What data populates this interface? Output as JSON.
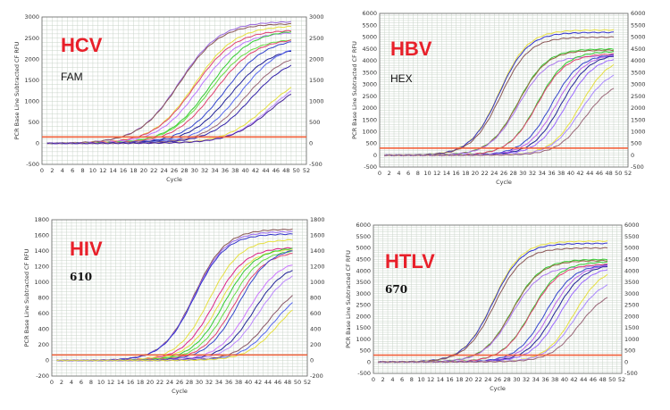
{
  "chart_data": [
    {
      "type": "line",
      "title": "HCV",
      "channel": "FAM",
      "xlabel": "Cycle",
      "ylabel": "PCR Base Line Subtracted CF RFU",
      "xlim": [
        0,
        52
      ],
      "ylim": [
        -500,
        3000
      ],
      "ytick_step": 500,
      "xtick_step": 2,
      "grid": true,
      "threshold": 150,
      "threshold_color": "#f0603a",
      "curves": [
        {
          "color": "#9966dd",
          "mid": 27,
          "plateau": 2900,
          "slope": 4
        },
        {
          "color": "#885555",
          "mid": 27,
          "plateau": 2850,
          "slope": 4
        },
        {
          "color": "#e6e040",
          "mid": 30,
          "plateau": 2800,
          "slope": 4
        },
        {
          "color": "#e04070",
          "mid": 30,
          "plateau": 2700,
          "slope": 4
        },
        {
          "color": "#bb77ff",
          "mid": 31,
          "plateau": 2650,
          "slope": 4
        },
        {
          "color": "#33cc33",
          "mid": 33,
          "plateau": 2700,
          "slope": 4
        },
        {
          "color": "#66dd44",
          "mid": 33,
          "plateau": 2500,
          "slope": 4
        },
        {
          "color": "#e04070",
          "mid": 34,
          "plateau": 2500,
          "slope": 4
        },
        {
          "color": "#3344cc",
          "mid": 36,
          "plateau": 2500,
          "slope": 4
        },
        {
          "color": "#222299",
          "mid": 37,
          "plateau": 2300,
          "slope": 4
        },
        {
          "color": "#5566ee",
          "mid": 39,
          "plateau": 2400,
          "slope": 4
        },
        {
          "color": "#996677",
          "mid": 40,
          "plateau": 2200,
          "slope": 4
        },
        {
          "color": "#3322aa",
          "mid": 41,
          "plateau": 2100,
          "slope": 4
        },
        {
          "color": "#e6e040",
          "mid": 44,
          "plateau": 1700,
          "slope": 4
        },
        {
          "color": "#bb88ff",
          "mid": 45,
          "plateau": 1700,
          "slope": 4
        },
        {
          "color": "#442299",
          "mid": 45,
          "plateau": 1600,
          "slope": 4
        }
      ]
    },
    {
      "type": "line",
      "title": "HBV",
      "channel": "HEX",
      "xlabel": "Cycle",
      "ylabel": "PCR Base Line Subtracted CF RFU",
      "xlim": [
        0,
        52
      ],
      "ylim": [
        -500,
        6000
      ],
      "ytick_step": 500,
      "xtick_step": 2,
      "grid": true,
      "threshold": 300,
      "threshold_color": "#f0603a",
      "curves": [
        {
          "color": "#e6e040",
          "mid": 25,
          "plateau": 5300,
          "slope": 3
        },
        {
          "color": "#3333cc",
          "mid": 25,
          "plateau": 5200,
          "slope": 3
        },
        {
          "color": "#885555",
          "mid": 25.3,
          "plateau": 5000,
          "slope": 3
        },
        {
          "color": "#33cc33",
          "mid": 29,
          "plateau": 4500,
          "slope": 3
        },
        {
          "color": "#996644",
          "mid": 29,
          "plateau": 4450,
          "slope": 3
        },
        {
          "color": "#aa77ee",
          "mid": 29,
          "plateau": 4200,
          "slope": 3
        },
        {
          "color": "#33cc33",
          "mid": 33,
          "plateau": 4400,
          "slope": 3
        },
        {
          "color": "#e04070",
          "mid": 33,
          "plateau": 4300,
          "slope": 3
        },
        {
          "color": "#3344cc",
          "mid": 36,
          "plateau": 4300,
          "slope": 3
        },
        {
          "color": "#bb66ee",
          "mid": 37,
          "plateau": 4300,
          "slope": 3
        },
        {
          "color": "#222299",
          "mid": 38,
          "plateau": 4300,
          "slope": 3
        },
        {
          "color": "#9966ff",
          "mid": 39,
          "plateau": 4200,
          "slope": 3
        },
        {
          "color": "#e6e040",
          "mid": 42,
          "plateau": 4200,
          "slope": 3
        },
        {
          "color": "#aa88ff",
          "mid": 42,
          "plateau": 3700,
          "slope": 3
        },
        {
          "color": "#996677",
          "mid": 43,
          "plateau": 3200,
          "slope": 3
        }
      ]
    },
    {
      "type": "line",
      "title": "HIV",
      "channel": "610",
      "xlabel": "Cycle",
      "ylabel": "PCR Base Line Subtracted CF RFU",
      "xlim": [
        0,
        52
      ],
      "ylim": [
        -200,
        1800
      ],
      "ytick_step": 200,
      "xtick_step": 2,
      "grid": true,
      "threshold": 70,
      "threshold_color": "#f0603a",
      "curves": [
        {
          "color": "#885555",
          "mid": 29,
          "plateau": 1680,
          "slope": 3.2
        },
        {
          "color": "#9966ee",
          "mid": 29,
          "plateau": 1650,
          "slope": 3.2
        },
        {
          "color": "#3333cc",
          "mid": 29,
          "plateau": 1620,
          "slope": 3.2
        },
        {
          "color": "#e6e040",
          "mid": 32,
          "plateau": 1550,
          "slope": 3.2
        },
        {
          "color": "#dd2288",
          "mid": 33,
          "plateau": 1450,
          "slope": 3.2
        },
        {
          "color": "#e6e040",
          "mid": 34,
          "plateau": 1430,
          "slope": 3.2
        },
        {
          "color": "#33cc33",
          "mid": 35,
          "plateau": 1450,
          "slope": 3.2
        },
        {
          "color": "#66dd44",
          "mid": 36,
          "plateau": 1420,
          "slope": 3.2
        },
        {
          "color": "#e04070",
          "mid": 37,
          "plateau": 1400,
          "slope": 3.2
        },
        {
          "color": "#3344cc",
          "mid": 38,
          "plateau": 1450,
          "slope": 3.2
        },
        {
          "color": "#cc77ff",
          "mid": 40,
          "plateau": 1300,
          "slope": 3.2
        },
        {
          "color": "#222299",
          "mid": 41,
          "plateau": 1250,
          "slope": 3.2
        },
        {
          "color": "#bb88ff",
          "mid": 42,
          "plateau": 1200,
          "slope": 3.2
        },
        {
          "color": "#885566",
          "mid": 44,
          "plateau": 1000,
          "slope": 3.2
        },
        {
          "color": "#5566ee",
          "mid": 45,
          "plateau": 950,
          "slope": 3.2
        },
        {
          "color": "#e6e040",
          "mid": 46,
          "plateau": 900,
          "slope": 3.2
        }
      ]
    },
    {
      "type": "line",
      "title": "HTLV",
      "channel": "670",
      "xlabel": "Cycle",
      "ylabel": "PCR Base Line Subtracted CF RFU",
      "xlim": [
        0,
        52
      ],
      "ylim": [
        -500,
        6000
      ],
      "ytick_step": 500,
      "xtick_step": 2,
      "grid": true,
      "threshold": 300,
      "threshold_color": "#f0603a",
      "curves": [
        {
          "color": "#e6e040",
          "mid": 25,
          "plateau": 5300,
          "slope": 3
        },
        {
          "color": "#3333cc",
          "mid": 25,
          "plateau": 5200,
          "slope": 3
        },
        {
          "color": "#885555",
          "mid": 25.3,
          "plateau": 5000,
          "slope": 3
        },
        {
          "color": "#33cc33",
          "mid": 29,
          "plateau": 4500,
          "slope": 3
        },
        {
          "color": "#996644",
          "mid": 29,
          "plateau": 4450,
          "slope": 3
        },
        {
          "color": "#aa77ee",
          "mid": 29,
          "plateau": 4200,
          "slope": 3
        },
        {
          "color": "#33cc33",
          "mid": 33,
          "plateau": 4400,
          "slope": 3
        },
        {
          "color": "#e04070",
          "mid": 33,
          "plateau": 4300,
          "slope": 3
        },
        {
          "color": "#3344cc",
          "mid": 36,
          "plateau": 4300,
          "slope": 3
        },
        {
          "color": "#bb66ee",
          "mid": 37,
          "plateau": 4300,
          "slope": 3
        },
        {
          "color": "#222299",
          "mid": 38,
          "plateau": 4300,
          "slope": 3
        },
        {
          "color": "#9966ff",
          "mid": 39,
          "plateau": 4200,
          "slope": 3
        },
        {
          "color": "#e6e040",
          "mid": 42,
          "plateau": 4200,
          "slope": 3
        },
        {
          "color": "#aa88ff",
          "mid": 42,
          "plateau": 3700,
          "slope": 3
        },
        {
          "color": "#996677",
          "mid": 43,
          "plateau": 3200,
          "slope": 3
        }
      ]
    }
  ]
}
